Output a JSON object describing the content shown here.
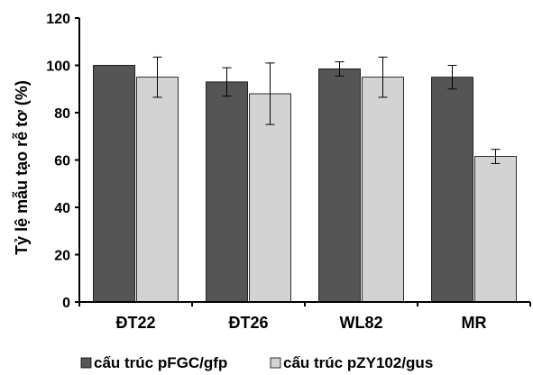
{
  "chart_data": {
    "type": "bar",
    "title": "",
    "xlabel": "",
    "ylabel": "Tỷ lệ mẫu tạo rễ tơ (%)",
    "ylim": [
      0,
      120
    ],
    "yticks": [
      0,
      20,
      40,
      60,
      80,
      100,
      120
    ],
    "categories": [
      "ĐT22",
      "ĐT26",
      "WL82",
      "MR"
    ],
    "series": [
      {
        "name": "cấu trúc pFGC/gfp",
        "color": "#555555",
        "values": [
          100,
          93,
          98.5,
          95
        ],
        "errors": [
          0,
          6,
          3,
          5
        ]
      },
      {
        "name": "cấu trúc pZY102/gus",
        "color": "#d3d3d3",
        "values": [
          95,
          88,
          95,
          61.5
        ],
        "errors": [
          8.5,
          13,
          8.5,
          3
        ]
      }
    ],
    "grid": false,
    "legend_position": "bottom"
  }
}
